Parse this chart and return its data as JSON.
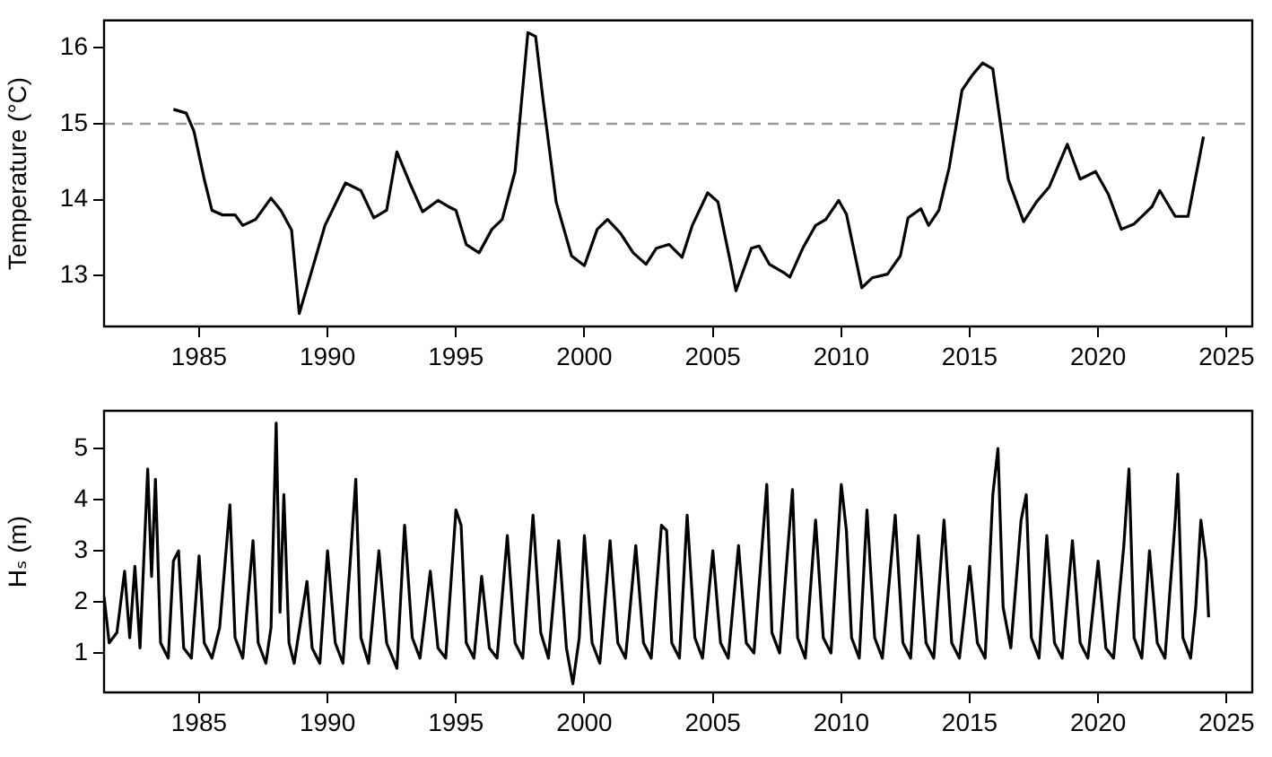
{
  "chart_data": [
    {
      "type": "line",
      "ylabel": "Temperature (°C)",
      "color": "#000000",
      "grid": false,
      "line_style": "solid",
      "marker": "none",
      "xlim": [
        1981.3,
        2026
      ],
      "xticks": [
        1985,
        1990,
        1995,
        2000,
        2005,
        2010,
        2015,
        2020,
        2025
      ],
      "ylim": [
        12.33,
        16.36
      ],
      "yticks": [
        13,
        14,
        15,
        16
      ],
      "ref_lines": [
        {
          "axis": "y",
          "value": 15,
          "color": "#999999",
          "line_style": "dashed"
        }
      ],
      "x": [
        1984.0,
        1984.5,
        1984.8,
        1985.2,
        1985.5,
        1985.9,
        1986.4,
        1986.7,
        1987.2,
        1987.8,
        1988.2,
        1988.6,
        1988.9,
        1989.9,
        1990.7,
        1991.3,
        1991.8,
        1992.3,
        1992.7,
        1993.2,
        1993.7,
        1994.3,
        1994.7,
        1995.0,
        1995.4,
        1995.9,
        1996.4,
        1996.8,
        1997.3,
        1997.8,
        1998.1,
        1998.4,
        1998.9,
        1999.5,
        2000.0,
        2000.5,
        2000.9,
        2001.4,
        2001.9,
        2002.4,
        2002.8,
        2003.3,
        2003.8,
        2004.2,
        2004.8,
        2005.2,
        2005.7,
        2005.9,
        2006.5,
        2006.8,
        2007.2,
        2007.8,
        2008.0,
        2008.5,
        2009.0,
        2009.4,
        2009.9,
        2010.2,
        2010.8,
        2011.2,
        2011.8,
        2012.3,
        2012.6,
        2013.1,
        2013.4,
        2013.8,
        2014.2,
        2014.7,
        2015.1,
        2015.5,
        2015.9,
        2016.5,
        2017.1,
        2017.6,
        2018.1,
        2018.8,
        2019.3,
        2019.9,
        2020.4,
        2020.9,
        2021.4,
        2022.1,
        2022.4,
        2023.0,
        2023.5,
        2024.1
      ],
      "values": [
        15.19,
        15.14,
        14.9,
        14.27,
        13.86,
        13.8,
        13.8,
        13.66,
        13.74,
        14.02,
        13.85,
        13.6,
        12.5,
        13.66,
        14.22,
        14.12,
        13.76,
        13.86,
        14.63,
        14.22,
        13.84,
        13.99,
        13.91,
        13.86,
        13.41,
        13.3,
        13.61,
        13.74,
        14.37,
        16.2,
        16.15,
        15.29,
        13.97,
        13.26,
        13.13,
        13.61,
        13.74,
        13.56,
        13.3,
        13.15,
        13.36,
        13.41,
        13.24,
        13.66,
        14.09,
        13.97,
        13.15,
        12.8,
        13.36,
        13.39,
        13.15,
        13.03,
        12.98,
        13.36,
        13.66,
        13.74,
        13.99,
        13.81,
        12.84,
        12.97,
        13.02,
        13.26,
        13.76,
        13.88,
        13.66,
        13.86,
        14.42,
        15.44,
        15.64,
        15.8,
        15.72,
        14.27,
        13.71,
        13.97,
        14.17,
        14.73,
        14.27,
        14.37,
        14.07,
        13.61,
        13.68,
        13.91,
        14.12,
        13.78,
        13.78,
        14.83
      ]
    },
    {
      "type": "line",
      "ylabel": "Hₛ (m)",
      "color": "#000000",
      "grid": false,
      "line_style": "solid",
      "marker": "none",
      "xlim": [
        1981.3,
        2026
      ],
      "xticks": [
        1985,
        1990,
        1995,
        2000,
        2005,
        2010,
        2015,
        2020,
        2025
      ],
      "ylim": [
        0.23,
        5.74
      ],
      "yticks": [
        1,
        2,
        3,
        4,
        5
      ],
      "x": [
        1981.3,
        1981.5,
        1981.8,
        1982.1,
        1982.3,
        1982.5,
        1982.7,
        1983.0,
        1983.15,
        1983.3,
        1983.5,
        1983.8,
        1984.0,
        1984.2,
        1984.4,
        1984.7,
        1985.0,
        1985.2,
        1985.5,
        1985.8,
        1986.2,
        1986.4,
        1986.7,
        1987.1,
        1987.3,
        1987.6,
        1987.8,
        1988.0,
        1988.15,
        1988.3,
        1988.5,
        1988.7,
        1989.2,
        1989.4,
        1989.7,
        1990.0,
        1990.3,
        1990.6,
        1990.9,
        1991.1,
        1991.3,
        1991.6,
        1992.0,
        1992.3,
        1992.7,
        1993.0,
        1993.3,
        1993.6,
        1994.0,
        1994.3,
        1994.6,
        1995.0,
        1995.2,
        1995.4,
        1995.7,
        1996.0,
        1996.3,
        1996.6,
        1997.0,
        1997.3,
        1997.6,
        1998.0,
        1998.3,
        1998.6,
        1999.0,
        1999.3,
        1999.55,
        1999.8,
        2000.0,
        2000.3,
        2000.6,
        2001.0,
        2001.3,
        2001.6,
        2002.0,
        2002.3,
        2002.6,
        2003.0,
        2003.2,
        2003.4,
        2003.7,
        2004.0,
        2004.3,
        2004.6,
        2005.0,
        2005.3,
        2005.6,
        2006.0,
        2006.3,
        2006.6,
        2007.1,
        2007.3,
        2007.6,
        2008.1,
        2008.3,
        2008.6,
        2009.0,
        2009.3,
        2009.6,
        2010.0,
        2010.2,
        2010.4,
        2010.7,
        2011.0,
        2011.3,
        2011.6,
        2012.1,
        2012.4,
        2012.7,
        2013.0,
        2013.3,
        2013.6,
        2014.0,
        2014.3,
        2014.6,
        2015.0,
        2015.3,
        2015.6,
        2015.9,
        2016.1,
        2016.3,
        2016.6,
        2017.0,
        2017.2,
        2017.4,
        2017.7,
        2018.0,
        2018.3,
        2018.6,
        2019.0,
        2019.3,
        2019.6,
        2020.0,
        2020.3,
        2020.6,
        2021.0,
        2021.2,
        2021.4,
        2021.7,
        2022.0,
        2022.3,
        2022.6,
        2023.0,
        2023.1,
        2023.3,
        2023.6,
        2023.8,
        2024.0,
        2024.2,
        2024.3
      ],
      "values": [
        2.1,
        1.2,
        1.4,
        2.6,
        1.3,
        2.7,
        1.1,
        4.6,
        2.5,
        4.4,
        1.2,
        0.9,
        2.8,
        3.0,
        1.1,
        0.9,
        2.9,
        1.2,
        0.9,
        1.5,
        3.9,
        1.3,
        0.9,
        3.2,
        1.2,
        0.8,
        1.5,
        5.5,
        1.8,
        4.1,
        1.2,
        0.8,
        2.4,
        1.1,
        0.8,
        3.0,
        1.2,
        0.8,
        2.9,
        4.4,
        1.3,
        0.8,
        3.0,
        1.2,
        0.7,
        3.5,
        1.3,
        0.9,
        2.6,
        1.1,
        0.9,
        3.8,
        3.5,
        1.2,
        0.9,
        2.5,
        1.1,
        0.9,
        3.3,
        1.2,
        0.9,
        3.7,
        1.4,
        0.9,
        3.2,
        1.1,
        0.4,
        1.3,
        3.3,
        1.2,
        0.8,
        3.2,
        1.2,
        0.9,
        3.1,
        1.2,
        0.9,
        3.5,
        3.4,
        1.2,
        0.9,
        3.7,
        1.3,
        0.9,
        3.0,
        1.2,
        0.9,
        3.1,
        1.2,
        1.0,
        4.3,
        1.4,
        1.0,
        4.2,
        1.3,
        0.9,
        3.6,
        1.3,
        1.0,
        4.3,
        3.4,
        1.3,
        0.9,
        3.8,
        1.3,
        0.9,
        3.7,
        1.2,
        0.9,
        3.3,
        1.2,
        0.9,
        3.6,
        1.2,
        0.9,
        2.7,
        1.2,
        0.9,
        4.1,
        5.0,
        1.9,
        1.1,
        3.6,
        4.1,
        1.3,
        0.9,
        3.3,
        1.2,
        0.9,
        3.2,
        1.2,
        0.9,
        2.8,
        1.1,
        0.9,
        3.1,
        4.6,
        1.3,
        0.9,
        3.0,
        1.2,
        0.9,
        3.6,
        4.5,
        1.3,
        0.9,
        1.9,
        3.6,
        2.8,
        1.7
      ]
    }
  ]
}
